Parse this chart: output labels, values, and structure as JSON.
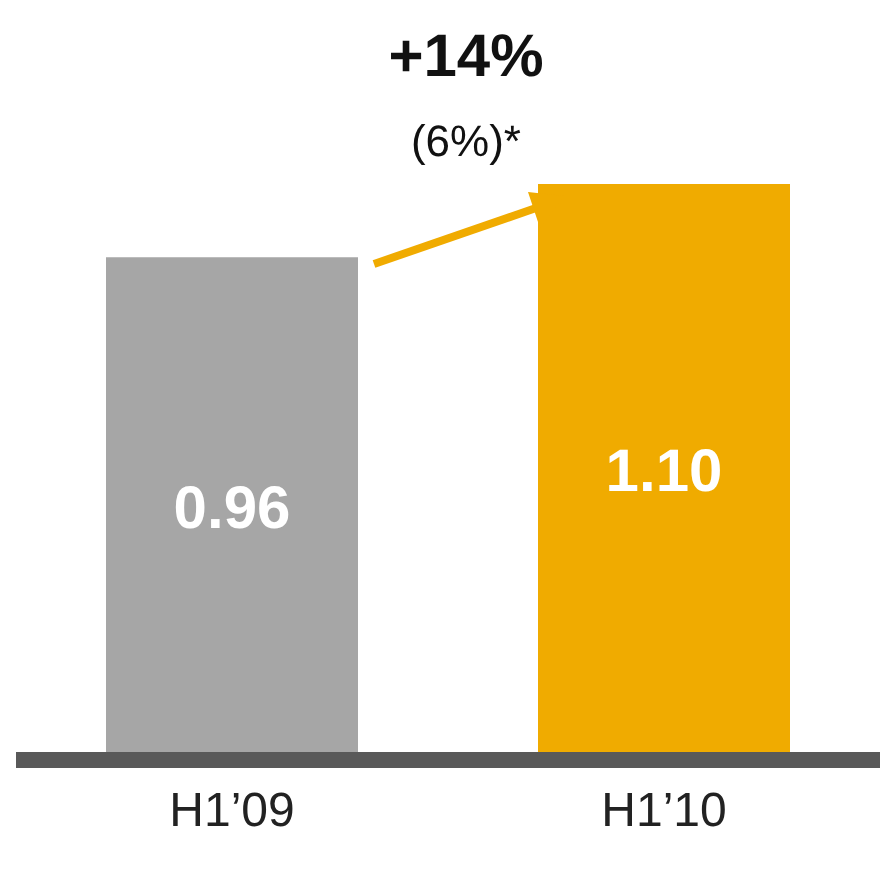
{
  "chart_data": {
    "type": "bar",
    "categories": [
      "H1’09",
      "H1’10"
    ],
    "values": [
      0.96,
      1.1
    ],
    "colors": [
      "#a6a6a6",
      "#f0ab00"
    ],
    "value_labels": [
      "0.96",
      "1.10"
    ],
    "annotations": [
      "+14%",
      "(6%)*"
    ]
  }
}
